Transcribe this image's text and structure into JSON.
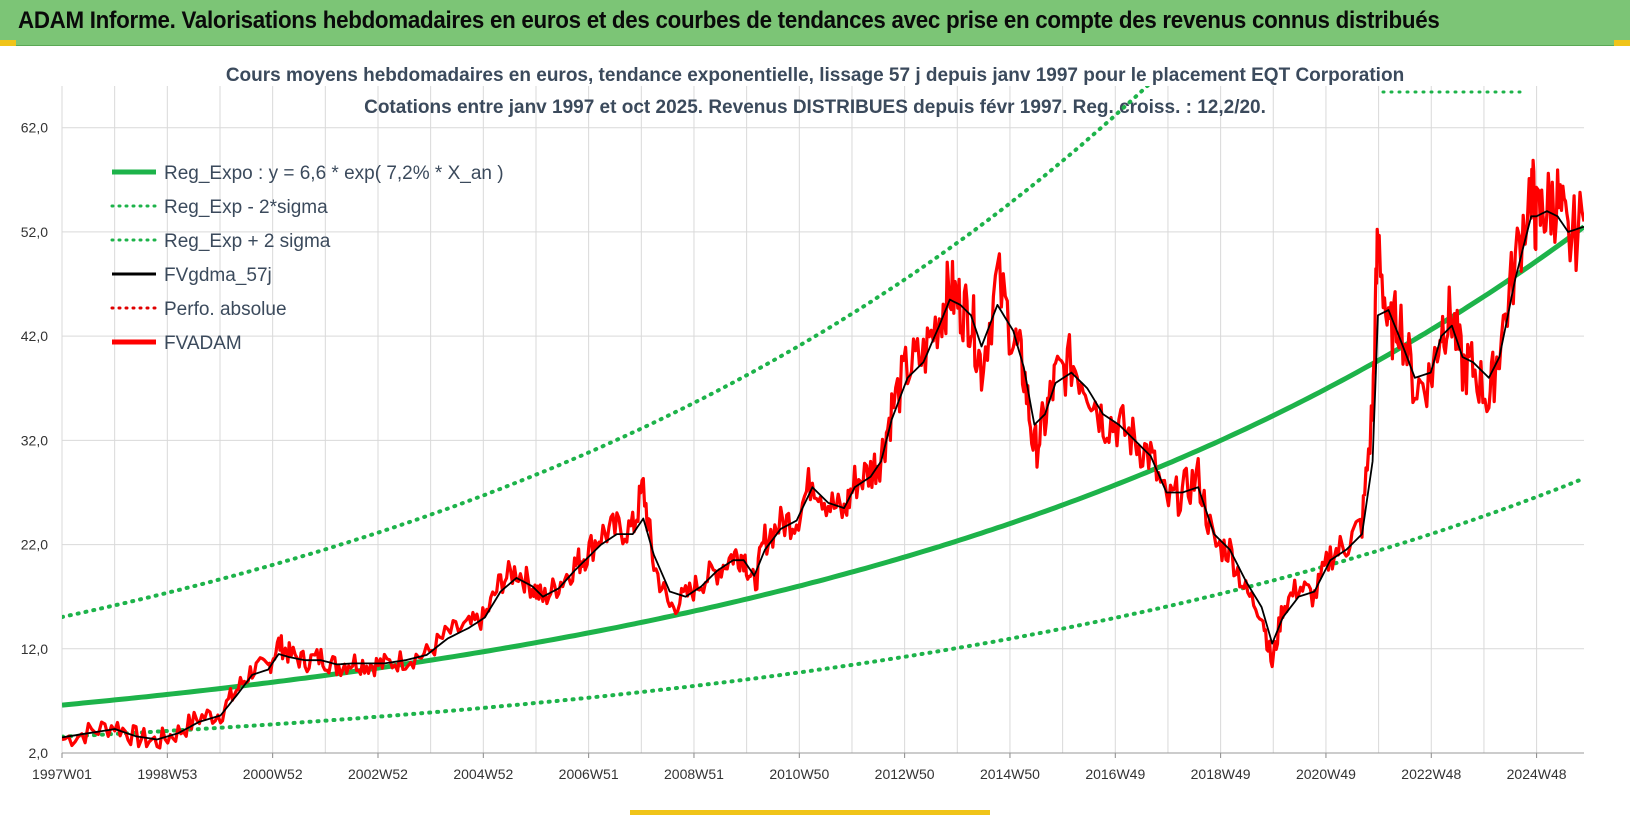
{
  "header": {
    "title": "ADAM Informe. Valorisations hebdomadaires en euros et des courbes de tendances avec prise en compte des revenus connus distribués"
  },
  "chart_data": {
    "type": "line",
    "title_line1": "Cours moyens hebdomadaires en euros, tendance exponentielle, lissage 57 j depuis janv 1997 pour le placement EQT Corporation",
    "title_line2": "Cotations entre janv 1997 et oct 2025. Revenus DISTRIBUES depuis févr 1997. Reg. croiss. : 12,2/20.",
    "x_ticks": [
      "1997W01",
      "1998W53",
      "2000W52",
      "2002W52",
      "2004W52",
      "2006W51",
      "2008W51",
      "2010W50",
      "2012W50",
      "2014W50",
      "2016W49",
      "2018W49",
      "2020W49",
      "2022W48",
      "2024W48"
    ],
    "xlim": [
      1997.0,
      2025.8
    ],
    "y_ticks": [
      "2,0",
      "12,0",
      "22,0",
      "32,0",
      "42,0",
      "52,0",
      "62,0"
    ],
    "ylim": [
      2,
      66
    ],
    "grid": true,
    "legend_position": "top-left",
    "legend": [
      {
        "label": "Reg_Expo : y = 6,6 * exp( 7,2% *  X_an )",
        "color": "#1db34a",
        "style": "solid-thick"
      },
      {
        "label": "Reg_Exp - 2*sigma",
        "color": "#1db34a",
        "style": "dotted"
      },
      {
        "label": "Reg_Exp + 2 sigma",
        "color": "#1db34a",
        "style": "dotted"
      },
      {
        "label": "FVgdma_57j",
        "color": "#000000",
        "style": "solid"
      },
      {
        "label": "Perfo. absolue",
        "color": "#e00000",
        "style": "dotted"
      },
      {
        "label": "FVADAM",
        "color": "#ff0000",
        "style": "solid-thick"
      }
    ],
    "regression": {
      "a": 6.6,
      "rate": 0.072,
      "lower_factor": 0.54,
      "upper_factor": 2.28
    },
    "series": [
      {
        "name": "FVADAM",
        "color": "#ff0000",
        "x": [
          1997.0,
          1997.5,
          1998.0,
          1998.4,
          1998.8,
          1999.2,
          1999.6,
          2000.0,
          2000.3,
          2000.6,
          2000.9,
          2001.1,
          2001.3,
          2001.6,
          2001.9,
          2002.2,
          2002.5,
          2002.8,
          2003.1,
          2003.5,
          2003.9,
          2004.3,
          2004.7,
          2005.0,
          2005.3,
          2005.6,
          2005.9,
          2006.1,
          2006.4,
          2006.7,
          2006.9,
          2007.2,
          2007.5,
          2007.8,
          2008.0,
          2008.2,
          2008.5,
          2008.8,
          2009.1,
          2009.4,
          2009.7,
          2009.9,
          2010.1,
          2010.3,
          2010.6,
          2010.9,
          2011.2,
          2011.5,
          2011.8,
          2012.0,
          2012.3,
          2012.5,
          2012.7,
          2013.0,
          2013.3,
          2013.6,
          2013.8,
          2014.0,
          2014.2,
          2014.4,
          2014.7,
          2015.0,
          2015.2,
          2015.4,
          2015.6,
          2015.8,
          2016.1,
          2016.4,
          2016.7,
          2017.0,
          2017.3,
          2017.6,
          2017.9,
          2018.2,
          2018.5,
          2018.8,
          2019.1,
          2019.4,
          2019.7,
          2019.9,
          2020.1,
          2020.4,
          2020.7,
          2021.0,
          2021.3,
          2021.6,
          2021.8,
          2021.9,
          2022.1,
          2022.3,
          2022.6,
          2022.9,
          2023.1,
          2023.3,
          2023.5,
          2023.7,
          2024.0,
          2024.2,
          2024.5,
          2024.8,
          2024.9,
          2025.1,
          2025.3,
          2025.5,
          2025.8
        ],
        "y": [
          3.3,
          4.0,
          4.7,
          3.5,
          3.1,
          4.0,
          5.4,
          5.8,
          8.0,
          10.0,
          10.2,
          12.5,
          11.5,
          10.8,
          11.2,
          10.3,
          10.8,
          10.5,
          10.5,
          11.0,
          11.5,
          13.5,
          14.2,
          15.0,
          18.5,
          19.5,
          18.0,
          16.8,
          18.2,
          20.0,
          21.0,
          23.0,
          23.5,
          23.5,
          27.5,
          20.0,
          16.0,
          17.0,
          18.5,
          19.5,
          21.0,
          21.0,
          18.0,
          22.5,
          24.0,
          24.5,
          28.5,
          26.0,
          25.0,
          28.0,
          29.0,
          30.5,
          35.0,
          39.0,
          40.0,
          44.0,
          46.5,
          45.0,
          44.0,
          39.0,
          47.5,
          42.0,
          38.5,
          31.0,
          34.0,
          38.0,
          39.5,
          37.5,
          34.0,
          33.5,
          32.0,
          30.5,
          26.0,
          27.0,
          28.5,
          22.0,
          21.5,
          17.5,
          15.5,
          10.5,
          16.0,
          18.0,
          17.0,
          21.0,
          22.0,
          24.0,
          35.0,
          52.0,
          42.0,
          44.0,
          37.0,
          38.0,
          43.0,
          44.0,
          39.0,
          39.0,
          36.0,
          41.0,
          49.0,
          56.5,
          53.0,
          54.5,
          55.0,
          51.0,
          53.0
        ]
      },
      {
        "name": "FVgdma_57j",
        "color": "#000000",
        "x": [
          1997.0,
          1997.5,
          1998.0,
          1998.4,
          1998.8,
          1999.2,
          1999.6,
          2000.0,
          2000.3,
          2000.6,
          2000.9,
          2001.1,
          2001.3,
          2001.6,
          2001.9,
          2002.2,
          2002.5,
          2002.8,
          2003.1,
          2003.5,
          2003.9,
          2004.3,
          2004.7,
          2005.0,
          2005.3,
          2005.6,
          2005.9,
          2006.1,
          2006.4,
          2006.7,
          2006.9,
          2007.2,
          2007.5,
          2007.8,
          2008.0,
          2008.2,
          2008.5,
          2008.8,
          2009.1,
          2009.4,
          2009.7,
          2009.9,
          2010.1,
          2010.3,
          2010.6,
          2010.9,
          2011.2,
          2011.5,
          2011.8,
          2012.0,
          2012.3,
          2012.5,
          2012.7,
          2013.0,
          2013.3,
          2013.6,
          2013.8,
          2014.0,
          2014.2,
          2014.4,
          2014.7,
          2015.0,
          2015.2,
          2015.4,
          2015.6,
          2015.8,
          2016.1,
          2016.4,
          2016.7,
          2017.0,
          2017.3,
          2017.6,
          2017.9,
          2018.2,
          2018.5,
          2018.8,
          2019.1,
          2019.4,
          2019.7,
          2019.9,
          2020.1,
          2020.4,
          2020.7,
          2021.0,
          2021.3,
          2021.6,
          2021.8,
          2021.9,
          2022.1,
          2022.3,
          2022.6,
          2022.9,
          2023.1,
          2023.3,
          2023.5,
          2023.7,
          2024.0,
          2024.2,
          2024.5,
          2024.8,
          2024.9,
          2025.1,
          2025.3,
          2025.5,
          2025.8
        ],
        "y": [
          3.5,
          3.9,
          4.3,
          3.6,
          3.3,
          3.9,
          5.0,
          5.6,
          7.5,
          9.5,
          10.0,
          11.5,
          11.2,
          10.9,
          10.9,
          10.5,
          10.6,
          10.6,
          10.6,
          10.9,
          11.4,
          13.0,
          14.0,
          15.0,
          17.5,
          18.8,
          18.0,
          17.0,
          17.8,
          19.5,
          20.5,
          22.0,
          23.0,
          23.0,
          24.5,
          21.0,
          17.5,
          17.0,
          18.0,
          19.5,
          20.5,
          20.5,
          19.0,
          21.5,
          23.5,
          24.3,
          27.5,
          26.0,
          25.5,
          27.5,
          28.5,
          30.0,
          34.0,
          38.0,
          39.5,
          43.0,
          45.5,
          45.0,
          44.0,
          41.0,
          45.0,
          42.5,
          39.0,
          33.5,
          34.5,
          37.5,
          38.5,
          37.0,
          34.5,
          33.5,
          32.0,
          30.5,
          27.0,
          27.0,
          27.5,
          23.0,
          21.5,
          18.5,
          16.0,
          12.5,
          15.0,
          17.0,
          17.5,
          20.5,
          21.5,
          23.0,
          30.0,
          44.0,
          44.5,
          42.0,
          38.0,
          38.5,
          42.0,
          43.0,
          40.0,
          39.5,
          38.0,
          40.0,
          47.5,
          53.5,
          53.5,
          54.0,
          53.5,
          52.0,
          52.5
        ]
      }
    ]
  }
}
